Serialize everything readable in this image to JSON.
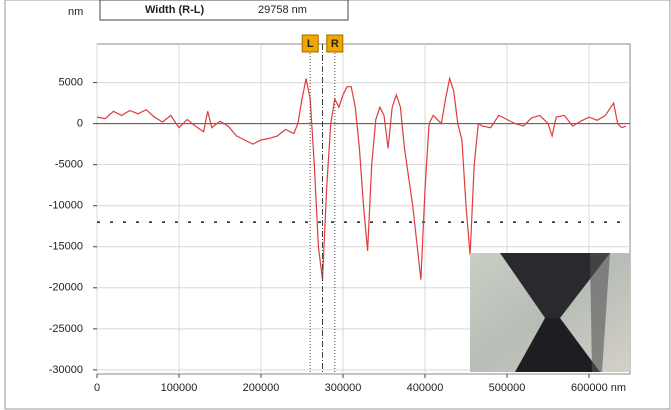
{
  "chart_data": {
    "type": "line",
    "y_unit": "nm",
    "header": {
      "label": "Width (R-L)",
      "value": "29758 nm"
    },
    "x": [
      0,
      10000,
      20000,
      30000,
      40000,
      50000,
      60000,
      70000,
      80000,
      90000,
      100000,
      110000,
      120000,
      130000,
      135000,
      140000,
      150000,
      160000,
      170000,
      180000,
      190000,
      200000,
      210000,
      220000,
      230000,
      240000,
      245000,
      250000,
      255000,
      260000,
      265000,
      270000,
      275000,
      280000,
      285000,
      290000,
      295000,
      300000,
      305000,
      310000,
      315000,
      320000,
      325000,
      330000,
      335000,
      340000,
      345000,
      350000,
      355000,
      360000,
      365000,
      370000,
      375000,
      385000,
      395000,
      400000,
      405000,
      410000,
      420000,
      425000,
      430000,
      435000,
      440000,
      445000,
      450000,
      455000,
      460000,
      465000,
      470000,
      480000,
      490000,
      500000,
      510000,
      520000,
      530000,
      540000,
      550000,
      555000,
      560000,
      570000,
      580000,
      590000,
      600000,
      610000,
      620000,
      630000,
      635000,
      640000,
      645000
    ],
    "values": [
      800,
      600,
      1500,
      1000,
      1600,
      1200,
      1700,
      800,
      200,
      1000,
      -500,
      500,
      -300,
      -1000,
      1500,
      -500,
      300,
      -300,
      -1500,
      -2000,
      -2500,
      -2000,
      -1800,
      -1500,
      -700,
      -1200,
      0,
      3000,
      5500,
      3000,
      -5000,
      -15000,
      -19000,
      -8000,
      0,
      3000,
      2000,
      3500,
      4500,
      4500,
      2000,
      -3000,
      -10000,
      -15500,
      -5000,
      500,
      2000,
      1000,
      -3000,
      2000,
      3500,
      2000,
      -3000,
      -10000,
      -19000,
      -8000,
      0,
      1000,
      0,
      3000,
      5500,
      4000,
      0,
      -2000,
      -10000,
      -16000,
      -5000,
      0,
      -300,
      -500,
      1000,
      500,
      0,
      -300,
      700,
      1000,
      0,
      -1500,
      800,
      1000,
      -300,
      300,
      800,
      400,
      1000,
      2500,
      0,
      -500,
      -300
    ],
    "color": "#e03c3c",
    "threshold": -12000,
    "cursors": [
      {
        "label": "L",
        "x": 260000
      },
      {
        "label": "R",
        "x": 290000
      }
    ],
    "xlim": [
      0,
      650000
    ],
    "ylim": [
      -30500,
      9700
    ],
    "xticks": [
      0,
      100000,
      200000,
      300000,
      400000,
      500000,
      {
        "value": 600000,
        "label": "600000 nm"
      }
    ],
    "yticks": [
      -30000,
      -25000,
      -20000,
      -15000,
      -10000,
      -5000,
      0,
      5000
    ],
    "grid": true
  }
}
